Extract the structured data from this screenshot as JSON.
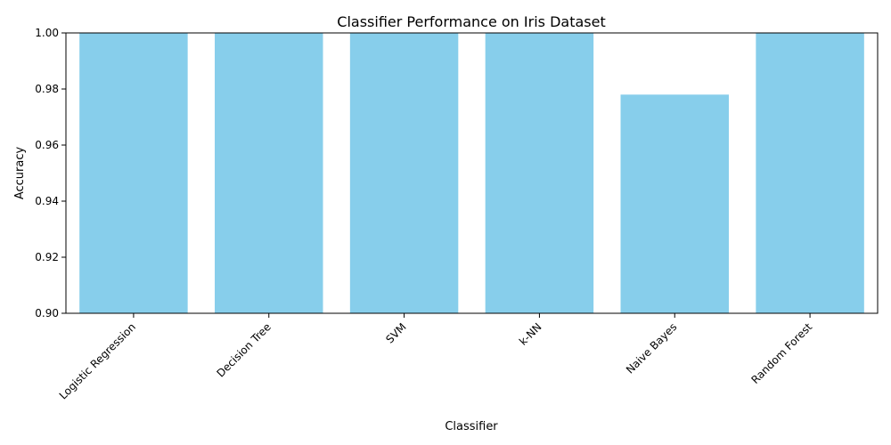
{
  "chart_data": {
    "type": "bar",
    "title": "Classifier Performance on Iris Dataset",
    "xlabel": "Classifier",
    "ylabel": "Accuracy",
    "categories": [
      "Logistic Regression",
      "Decision Tree",
      "SVM",
      "k-NN",
      "Naive Bayes",
      "Random Forest"
    ],
    "values": [
      1.0,
      1.0,
      1.0,
      1.0,
      0.978,
      1.0
    ],
    "ylim": [
      0.9,
      1.0
    ],
    "yticks": [
      "0.90",
      "0.92",
      "0.94",
      "0.96",
      "0.98",
      "1.00"
    ],
    "bar_color": "#87ceeb",
    "grid": false
  }
}
